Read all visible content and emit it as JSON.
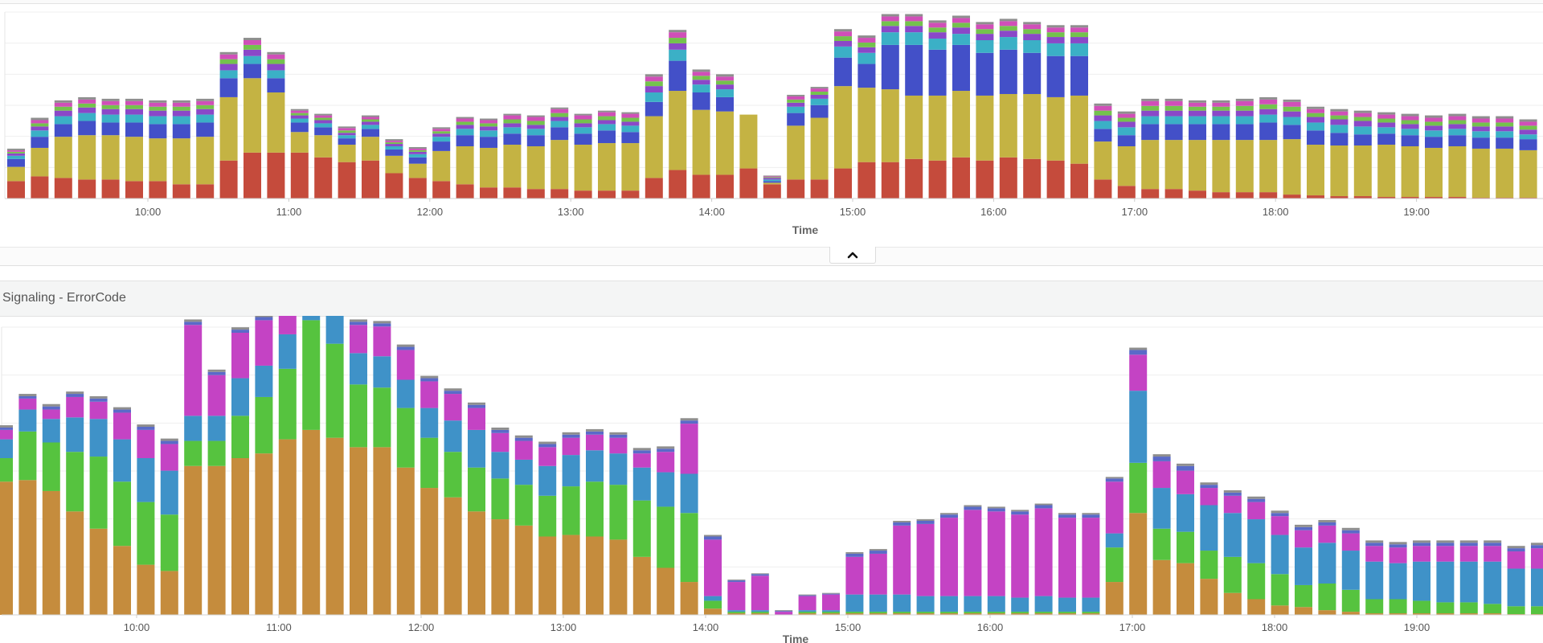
{
  "colors": {
    "red": "#c54b3c",
    "olive": "#c4b343",
    "blue": "#4350c8",
    "cyan": "#3bb0c6",
    "purple": "#8a48c8",
    "green": "#74c24d",
    "pink": "#d04fb8",
    "gray": "#8e8e8e",
    "orange": "#c58c3d",
    "lime": "#56c33f",
    "steel": "#3f92c8",
    "magenta": "#c443c4",
    "indigo": "#5a6ac8",
    "grid": "#efefef"
  },
  "top_chart": {
    "xlabel": "Time",
    "collapse_icon": "chevron-up-icon"
  },
  "bottom_panel": {
    "title": "Signaling - ErrorCode",
    "xlabel": "Time"
  },
  "chart_data": [
    {
      "type": "bar",
      "stacked": true,
      "xlabel": "Time",
      "ylabel": "",
      "x_tick_labels": [
        "10:00",
        "11:00",
        "12:00",
        "13:00",
        "14:00",
        "15:00",
        "16:00",
        "17:00",
        "18:00",
        "19:00"
      ],
      "grid": true,
      "legend": "none",
      "series_colors": [
        "red",
        "olive",
        "blue",
        "cyan",
        "purple",
        "green",
        "pink",
        "gray"
      ],
      "bars": [
        [
          22,
          18,
          10,
          4,
          3,
          2,
          2,
          2
        ],
        [
          28,
          36,
          14,
          8,
          5,
          4,
          4,
          3
        ],
        [
          26,
          52,
          16,
          10,
          7,
          5,
          5,
          3
        ],
        [
          24,
          56,
          18,
          10,
          7,
          5,
          5,
          3
        ],
        [
          24,
          56,
          16,
          10,
          7,
          5,
          5,
          3
        ],
        [
          22,
          56,
          18,
          10,
          7,
          5,
          5,
          3
        ],
        [
          22,
          54,
          18,
          10,
          7,
          5,
          5,
          3
        ],
        [
          18,
          58,
          18,
          10,
          7,
          5,
          5,
          3
        ],
        [
          18,
          60,
          18,
          10,
          7,
          5,
          5,
          3
        ],
        [
          48,
          80,
          24,
          10,
          8,
          6,
          6,
          3
        ],
        [
          58,
          94,
          18,
          10,
          8,
          6,
          6,
          3
        ],
        [
          58,
          76,
          18,
          10,
          8,
          6,
          6,
          3
        ],
        [
          58,
          26,
          12,
          5,
          4,
          3,
          3,
          2
        ],
        [
          52,
          28,
          10,
          5,
          4,
          3,
          3,
          2
        ],
        [
          46,
          22,
          8,
          4,
          3,
          3,
          3,
          2
        ],
        [
          48,
          30,
          10,
          5,
          4,
          3,
          3,
          2
        ],
        [
          32,
          22,
          8,
          4,
          3,
          2,
          2,
          2
        ],
        [
          26,
          18,
          8,
          4,
          3,
          2,
          2,
          2
        ],
        [
          22,
          38,
          12,
          6,
          4,
          3,
          3,
          2
        ],
        [
          18,
          48,
          14,
          8,
          5,
          4,
          4,
          2
        ],
        [
          14,
          50,
          14,
          8,
          5,
          4,
          4,
          2
        ],
        [
          14,
          54,
          14,
          8,
          5,
          5,
          5,
          2
        ],
        [
          12,
          54,
          14,
          8,
          5,
          5,
          5,
          2
        ],
        [
          12,
          62,
          16,
          8,
          5,
          5,
          5,
          2
        ],
        [
          10,
          58,
          14,
          8,
          5,
          5,
          5,
          2
        ],
        [
          10,
          60,
          16,
          8,
          5,
          5,
          5,
          2
        ],
        [
          10,
          60,
          14,
          8,
          5,
          5,
          5,
          2
        ],
        [
          26,
          78,
          18,
          12,
          8,
          6,
          6,
          3
        ],
        [
          36,
          100,
          38,
          14,
          8,
          7,
          7,
          3
        ],
        [
          30,
          82,
          22,
          10,
          6,
          5,
          5,
          3
        ],
        [
          30,
          80,
          18,
          10,
          6,
          5,
          5,
          3
        ],
        [
          38,
          68,
          0,
          0,
          0,
          0,
          0,
          0
        ],
        [
          18,
          2,
          2,
          2,
          2,
          1,
          1,
          1
        ],
        [
          24,
          68,
          16,
          8,
          5,
          4,
          4,
          2
        ],
        [
          24,
          78,
          16,
          8,
          5,
          4,
          4,
          2
        ],
        [
          38,
          104,
          36,
          14,
          7,
          6,
          6,
          3
        ],
        [
          46,
          94,
          30,
          14,
          7,
          6,
          6,
          3
        ],
        [
          46,
          92,
          56,
          16,
          8,
          6,
          6,
          3
        ],
        [
          50,
          80,
          64,
          16,
          8,
          6,
          6,
          3
        ],
        [
          48,
          82,
          58,
          14,
          8,
          6,
          6,
          3
        ],
        [
          52,
          84,
          58,
          14,
          8,
          6,
          6,
          3
        ],
        [
          48,
          82,
          54,
          16,
          8,
          6,
          6,
          3
        ],
        [
          52,
          80,
          56,
          16,
          8,
          6,
          6,
          3
        ],
        [
          50,
          82,
          52,
          16,
          8,
          6,
          6,
          3
        ],
        [
          48,
          80,
          52,
          16,
          8,
          6,
          6,
          3
        ],
        [
          44,
          86,
          50,
          16,
          8,
          6,
          6,
          3
        ],
        [
          24,
          48,
          16,
          10,
          7,
          6,
          6,
          3
        ],
        [
          16,
          50,
          14,
          10,
          7,
          5,
          5,
          3
        ],
        [
          12,
          62,
          20,
          10,
          7,
          6,
          6,
          3
        ],
        [
          12,
          62,
          20,
          10,
          7,
          6,
          6,
          3
        ],
        [
          10,
          64,
          20,
          10,
          7,
          5,
          5,
          3
        ],
        [
          8,
          66,
          20,
          10,
          7,
          5,
          5,
          3
        ],
        [
          8,
          66,
          20,
          10,
          7,
          6,
          6,
          3
        ],
        [
          8,
          66,
          22,
          10,
          7,
          6,
          6,
          3
        ],
        [
          5,
          70,
          18,
          10,
          7,
          6,
          6,
          3
        ],
        [
          4,
          64,
          18,
          10,
          7,
          5,
          5,
          3
        ],
        [
          3,
          64,
          16,
          10,
          7,
          5,
          5,
          3
        ],
        [
          3,
          64,
          14,
          10,
          7,
          5,
          5,
          3
        ],
        [
          2,
          66,
          14,
          8,
          6,
          5,
          5,
          3
        ],
        [
          2,
          64,
          14,
          8,
          6,
          5,
          5,
          3
        ],
        [
          2,
          62,
          14,
          8,
          6,
          5,
          5,
          3
        ],
        [
          2,
          64,
          14,
          8,
          6,
          5,
          5,
          3
        ],
        [
          1,
          62,
          14,
          8,
          6,
          5,
          5,
          3
        ],
        [
          1,
          62,
          14,
          8,
          6,
          5,
          5,
          3
        ],
        [
          1,
          60,
          14,
          6,
          6,
          5,
          5,
          3
        ],
        [
          1,
          60,
          14,
          6,
          6,
          5,
          5,
          3
        ]
      ]
    },
    {
      "type": "bar",
      "stacked": true,
      "title": "Signaling - ErrorCode",
      "xlabel": "Time",
      "ylabel": "",
      "x_tick_labels": [
        "10:00",
        "11:00",
        "12:00",
        "13:00",
        "14:00",
        "15:00",
        "16:00",
        "17:00",
        "18:00",
        "19:00"
      ],
      "grid": true,
      "legend": "none",
      "series_colors": [
        "orange",
        "lime",
        "steel",
        "magenta",
        "indigo",
        "gray"
      ],
      "bars": [
        [
          170,
          30,
          24,
          12,
          3,
          3
        ],
        [
          172,
          62,
          28,
          14,
          3,
          3
        ],
        [
          158,
          62,
          30,
          12,
          4,
          3
        ],
        [
          132,
          76,
          44,
          26,
          4,
          3
        ],
        [
          110,
          92,
          48,
          22,
          4,
          3
        ],
        [
          88,
          82,
          54,
          34,
          4,
          3
        ],
        [
          64,
          80,
          56,
          36,
          4,
          3
        ],
        [
          56,
          72,
          56,
          34,
          4,
          3
        ],
        [
          190,
          32,
          32,
          116,
          4,
          3
        ],
        [
          190,
          32,
          32,
          52,
          4,
          3
        ],
        [
          200,
          54,
          48,
          58,
          4,
          3
        ],
        [
          206,
          72,
          40,
          58,
          4,
          3
        ],
        [
          224,
          90,
          44,
          48,
          4,
          3
        ],
        [
          236,
          140,
          52,
          30,
          4,
          3
        ],
        [
          226,
          120,
          46,
          28,
          4,
          3
        ],
        [
          214,
          80,
          40,
          36,
          4,
          3
        ],
        [
          214,
          76,
          40,
          38,
          4,
          3
        ],
        [
          188,
          76,
          36,
          38,
          4,
          3
        ],
        [
          162,
          64,
          38,
          34,
          4,
          3
        ],
        [
          150,
          58,
          40,
          34,
          4,
          3
        ],
        [
          132,
          56,
          48,
          28,
          4,
          3
        ],
        [
          122,
          52,
          34,
          24,
          4,
          3
        ],
        [
          114,
          52,
          32,
          24,
          4,
          3
        ],
        [
          100,
          52,
          38,
          24,
          4,
          3
        ],
        [
          102,
          62,
          40,
          22,
          4,
          3
        ],
        [
          100,
          70,
          40,
          20,
          4,
          3
        ],
        [
          96,
          70,
          40,
          20,
          4,
          3
        ],
        [
          74,
          72,
          42,
          18,
          4,
          3
        ],
        [
          60,
          78,
          44,
          26,
          4,
          3
        ],
        [
          42,
          88,
          50,
          64,
          4,
          3
        ],
        [
          8,
          10,
          6,
          72,
          4,
          2
        ],
        [
          2,
          2,
          2,
          36,
          2,
          1
        ],
        [
          2,
          2,
          2,
          44,
          2,
          1
        ],
        [
          0,
          0,
          0,
          4,
          1,
          1
        ],
        [
          2,
          2,
          2,
          18,
          1,
          1
        ],
        [
          2,
          2,
          2,
          20,
          1,
          1
        ],
        [
          2,
          2,
          22,
          48,
          4,
          2
        ],
        [
          2,
          2,
          22,
          52,
          4,
          2
        ],
        [
          2,
          2,
          22,
          88,
          4,
          2
        ],
        [
          2,
          2,
          20,
          92,
          4,
          2
        ],
        [
          2,
          2,
          20,
          100,
          4,
          2
        ],
        [
          2,
          2,
          20,
          110,
          4,
          2
        ],
        [
          2,
          2,
          20,
          108,
          4,
          2
        ],
        [
          2,
          2,
          18,
          106,
          4,
          2
        ],
        [
          2,
          2,
          20,
          112,
          4,
          2
        ],
        [
          2,
          2,
          18,
          102,
          4,
          2
        ],
        [
          2,
          2,
          18,
          102,
          4,
          2
        ],
        [
          42,
          44,
          18,
          66,
          4,
          2
        ],
        [
          130,
          64,
          92,
          46,
          6,
          3
        ],
        [
          70,
          40,
          52,
          34,
          6,
          3
        ],
        [
          66,
          40,
          48,
          30,
          6,
          3
        ],
        [
          46,
          36,
          58,
          22,
          4,
          3
        ],
        [
          28,
          46,
          56,
          22,
          4,
          3
        ],
        [
          20,
          46,
          56,
          22,
          4,
          3
        ],
        [
          12,
          40,
          50,
          24,
          4,
          3
        ],
        [
          10,
          28,
          48,
          22,
          4,
          3
        ],
        [
          6,
          34,
          52,
          22,
          4,
          3
        ],
        [
          4,
          28,
          50,
          22,
          4,
          3
        ],
        [
          2,
          18,
          48,
          20,
          4,
          3
        ],
        [
          2,
          18,
          46,
          20,
          4,
          3
        ],
        [
          2,
          16,
          50,
          20,
          4,
          3
        ],
        [
          2,
          14,
          52,
          20,
          4,
          3
        ],
        [
          2,
          14,
          52,
          20,
          4,
          3
        ],
        [
          2,
          12,
          54,
          20,
          4,
          3
        ],
        [
          1,
          10,
          48,
          22,
          4,
          3
        ],
        [
          1,
          10,
          48,
          26,
          4,
          3
        ],
        [
          1,
          8,
          46,
          26,
          4,
          3
        ]
      ]
    }
  ]
}
